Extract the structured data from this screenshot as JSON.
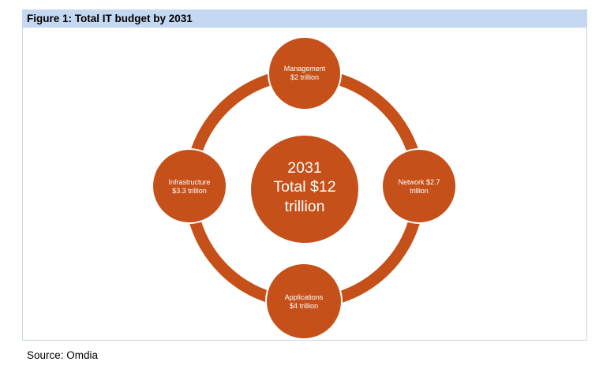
{
  "figure": {
    "title": "Figure 1: Total IT budget by 2031",
    "accent_color": "#c55019",
    "header_color": "#c5d8f1"
  },
  "diagram": {
    "center": {
      "lines": [
        "2031",
        "Total $12",
        "trillion"
      ]
    },
    "nodes": [
      {
        "id": "management",
        "lines": [
          "Management",
          "$2 trillion"
        ]
      },
      {
        "id": "network",
        "lines": [
          "Network $2.7",
          "trillion"
        ]
      },
      {
        "id": "applications",
        "lines": [
          "Applications",
          "$4 trillion"
        ]
      },
      {
        "id": "infrastructure",
        "lines": [
          "Infrastructure",
          "$3.3 trillion"
        ]
      }
    ]
  },
  "source": "Source: Omdia"
}
